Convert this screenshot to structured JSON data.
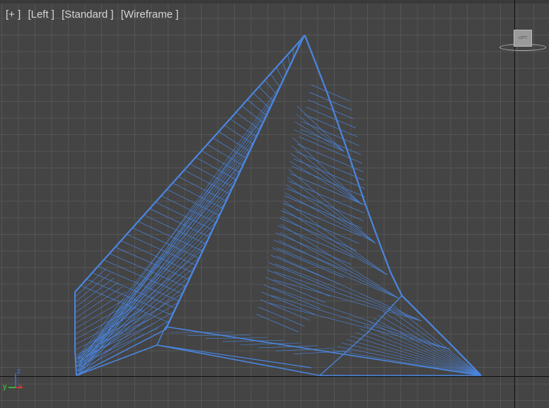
{
  "viewport": {
    "labels": {
      "plus": "[+ ]",
      "view": "[Left ]",
      "shading_standard": "[Standard ]",
      "shading_wireframe": "[Wireframe ]"
    },
    "viewcube_label": "LEFT",
    "wire_color": "#4a86e0",
    "grid_color": "#555555",
    "background_color": "#444444"
  },
  "axis_gizmo": {
    "y_label": "y",
    "z_label": "z",
    "x_label": "x",
    "y_color": "#3ad63a",
    "z_color": "#3a6ee0",
    "x_color": "#e03a3a"
  }
}
